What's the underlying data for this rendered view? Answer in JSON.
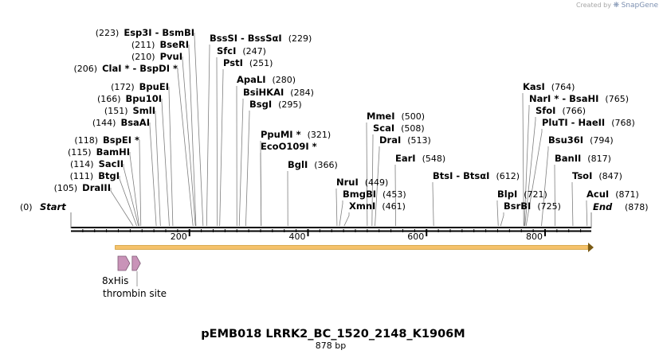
{
  "credit": {
    "prefix": "Created by",
    "brand": "SnapGene"
  },
  "plasmid": {
    "name": "pEMB018 LRRK2_BC_1520_2148_K1906M",
    "length_label": "878 bp"
  },
  "axis": {
    "start_label": "Start",
    "start_pos": "(0)",
    "end_label": "End",
    "end_pos": "(878)",
    "ticks": [
      {
        "value": 200,
        "label": "200"
      },
      {
        "value": 400,
        "label": "400"
      },
      {
        "value": 600,
        "label": "600"
      },
      {
        "value": 800,
        "label": "800"
      }
    ]
  },
  "sites": [
    {
      "name": "DraIII",
      "pos": "(105)",
      "bp": 105,
      "side": "left"
    },
    {
      "name": "BtgI",
      "pos": "(111)",
      "bp": 111,
      "side": "left"
    },
    {
      "name": "SacII",
      "pos": "(114)",
      "bp": 114,
      "side": "left"
    },
    {
      "name": "BamHI",
      "pos": "(115)",
      "bp": 115,
      "side": "left"
    },
    {
      "name": "BspEI *",
      "pos": "(118)",
      "bp": 118,
      "side": "left"
    },
    {
      "name": "BsaAI",
      "pos": "(144)",
      "bp": 144,
      "side": "left"
    },
    {
      "name": "SmlI",
      "pos": "(151)",
      "bp": 151,
      "side": "left"
    },
    {
      "name": "Bpu10I",
      "pos": "(166)",
      "bp": 166,
      "side": "left"
    },
    {
      "name": "BpuEI",
      "pos": "(172)",
      "bp": 172,
      "side": "left"
    },
    {
      "name": "ClaI *  -  BspDI *",
      "pos": "(206)",
      "bp": 206,
      "side": "left"
    },
    {
      "name": "PvuI",
      "pos": "(210)",
      "bp": 210,
      "side": "left"
    },
    {
      "name": "BseRI",
      "pos": "(211)",
      "bp": 211,
      "side": "left"
    },
    {
      "name": "Esp3I  -  BsmBI",
      "pos": "(223)",
      "bp": 223,
      "side": "left"
    },
    {
      "name": "BssSI  -  BssSαI",
      "pos": "(229)",
      "bp": 229,
      "side": "right"
    },
    {
      "name": "SfcI",
      "pos": "(247)",
      "bp": 247,
      "side": "right"
    },
    {
      "name": "PstI",
      "pos": "(251)",
      "bp": 251,
      "side": "right"
    },
    {
      "name": "ApaLI",
      "pos": "(280)",
      "bp": 280,
      "side": "right"
    },
    {
      "name": "BsiHKAI",
      "pos": "(284)",
      "bp": 284,
      "side": "right"
    },
    {
      "name": "BsgI",
      "pos": "(295)",
      "bp": 295,
      "side": "right"
    },
    {
      "name": "PpuMI *",
      "pos": "(321)",
      "bp": 321,
      "side": "right"
    },
    {
      "name": "EcoO109I *",
      "pos": "",
      "bp": 321,
      "side": "right"
    },
    {
      "name": "BglI",
      "pos": "(366)",
      "bp": 366,
      "side": "right"
    },
    {
      "name": "NruI",
      "pos": "(449)",
      "bp": 449,
      "side": "right"
    },
    {
      "name": "BmgBI",
      "pos": "(453)",
      "bp": 453,
      "side": "right"
    },
    {
      "name": "XmnI",
      "pos": "(461)",
      "bp": 461,
      "side": "right"
    },
    {
      "name": "MmeI",
      "pos": "(500)",
      "bp": 500,
      "side": "right"
    },
    {
      "name": "ScaI",
      "pos": "(508)",
      "bp": 508,
      "side": "right"
    },
    {
      "name": "DraI",
      "pos": "(513)",
      "bp": 513,
      "side": "right"
    },
    {
      "name": "EarI",
      "pos": "(548)",
      "bp": 548,
      "side": "right"
    },
    {
      "name": "BtsI  -  BtsαI",
      "pos": "(612)",
      "bp": 612,
      "side": "right"
    },
    {
      "name": "BlpI",
      "pos": "(721)",
      "bp": 721,
      "side": "right"
    },
    {
      "name": "BsrBI",
      "pos": "(725)",
      "bp": 725,
      "side": "right"
    },
    {
      "name": "KasI",
      "pos": "(764)",
      "bp": 764,
      "side": "right"
    },
    {
      "name": "NarI *  -  BsaHI",
      "pos": "(765)",
      "bp": 765,
      "side": "right"
    },
    {
      "name": "SfoI",
      "pos": "(766)",
      "bp": 766,
      "side": "right"
    },
    {
      "name": "PluTI  -  HaeII",
      "pos": "(768)",
      "bp": 768,
      "side": "right"
    },
    {
      "name": "Bsu36I",
      "pos": "(794)",
      "bp": 794,
      "side": "right"
    },
    {
      "name": "BanII",
      "pos": "(817)",
      "bp": 817,
      "side": "right"
    },
    {
      "name": "TsoI",
      "pos": "(847)",
      "bp": 847,
      "side": "right"
    },
    {
      "name": "AcuI",
      "pos": "(871)",
      "bp": 871,
      "side": "right"
    }
  ],
  "features": [
    {
      "name": "8xHis",
      "start_bp": 78,
      "end_bp": 102,
      "color": "#c993b8"
    },
    {
      "name": "thrombin site",
      "start_bp": 102,
      "end_bp": 120,
      "color": "#c993b8"
    }
  ],
  "orf": {
    "start_bp": 76,
    "end_bp": 878,
    "color": "#f5c26b",
    "stroke": "#c48a14"
  },
  "colors": {
    "backbone": "#000000",
    "leader": "#7f7f7f"
  }
}
